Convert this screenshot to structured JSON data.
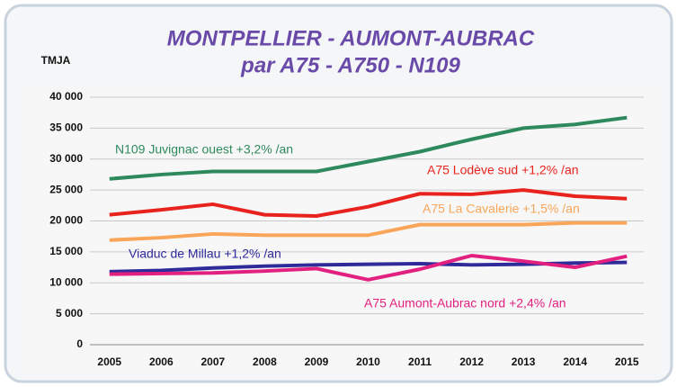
{
  "chart_data": {
    "type": "line",
    "title": "MONTPELLIER - AUMONT-AUBRAC",
    "subtitle": "par A75 - A750 - N109",
    "y_label": "TMJA",
    "categories": [
      "2005",
      "2006",
      "2007",
      "2008",
      "2009",
      "2010",
      "2011",
      "2012",
      "2013",
      "2014",
      "2015"
    ],
    "series": [
      {
        "name": "N109 Juvignac ouest +3,2% /an",
        "color": "#2e8a5c",
        "values": [
          26800,
          27500,
          28000,
          28000,
          28000,
          29600,
          31200,
          33200,
          35000,
          35600,
          36700
        ]
      },
      {
        "name": "A75 Lodève sud +1,2% /an",
        "color": "#e8231e",
        "values": [
          21000,
          21800,
          22700,
          21000,
          20800,
          22300,
          24400,
          24300,
          25000,
          24000,
          23600
        ]
      },
      {
        "name": "A75 La Cavalerie +1,5% /an",
        "color": "#f9a65a",
        "values": [
          16900,
          17300,
          17900,
          17700,
          17700,
          17700,
          19400,
          19400,
          19400,
          19700,
          19700
        ]
      },
      {
        "name": "Viaduc de Millau +1,2% /an",
        "color": "#2e2a9a",
        "values": [
          11800,
          12000,
          12400,
          12700,
          12900,
          13000,
          13100,
          12900,
          13000,
          13200,
          13300
        ]
      },
      {
        "name": "A75 Aumont-Aubrac nord +2,4% /an",
        "color": "#e2207f",
        "values": [
          11400,
          11500,
          11600,
          11900,
          12300,
          10500,
          12200,
          14400,
          13500,
          12500,
          14300
        ]
      }
    ],
    "ylim": [
      0,
      40000
    ],
    "yticks": [
      0,
      {
        "value": 5000,
        "label": "5 000"
      },
      {
        "value": 10000,
        "label": "10 000"
      },
      {
        "value": 15000,
        "label": "15 000"
      },
      {
        "value": 20000,
        "label": "20 000"
      },
      {
        "value": 25000,
        "label": "25 000"
      },
      {
        "value": 30000,
        "label": "30 000"
      },
      {
        "value": 35000,
        "label": "35 000"
      },
      {
        "value": 40000,
        "label": "40 000"
      }
    ],
    "grid": true
  }
}
